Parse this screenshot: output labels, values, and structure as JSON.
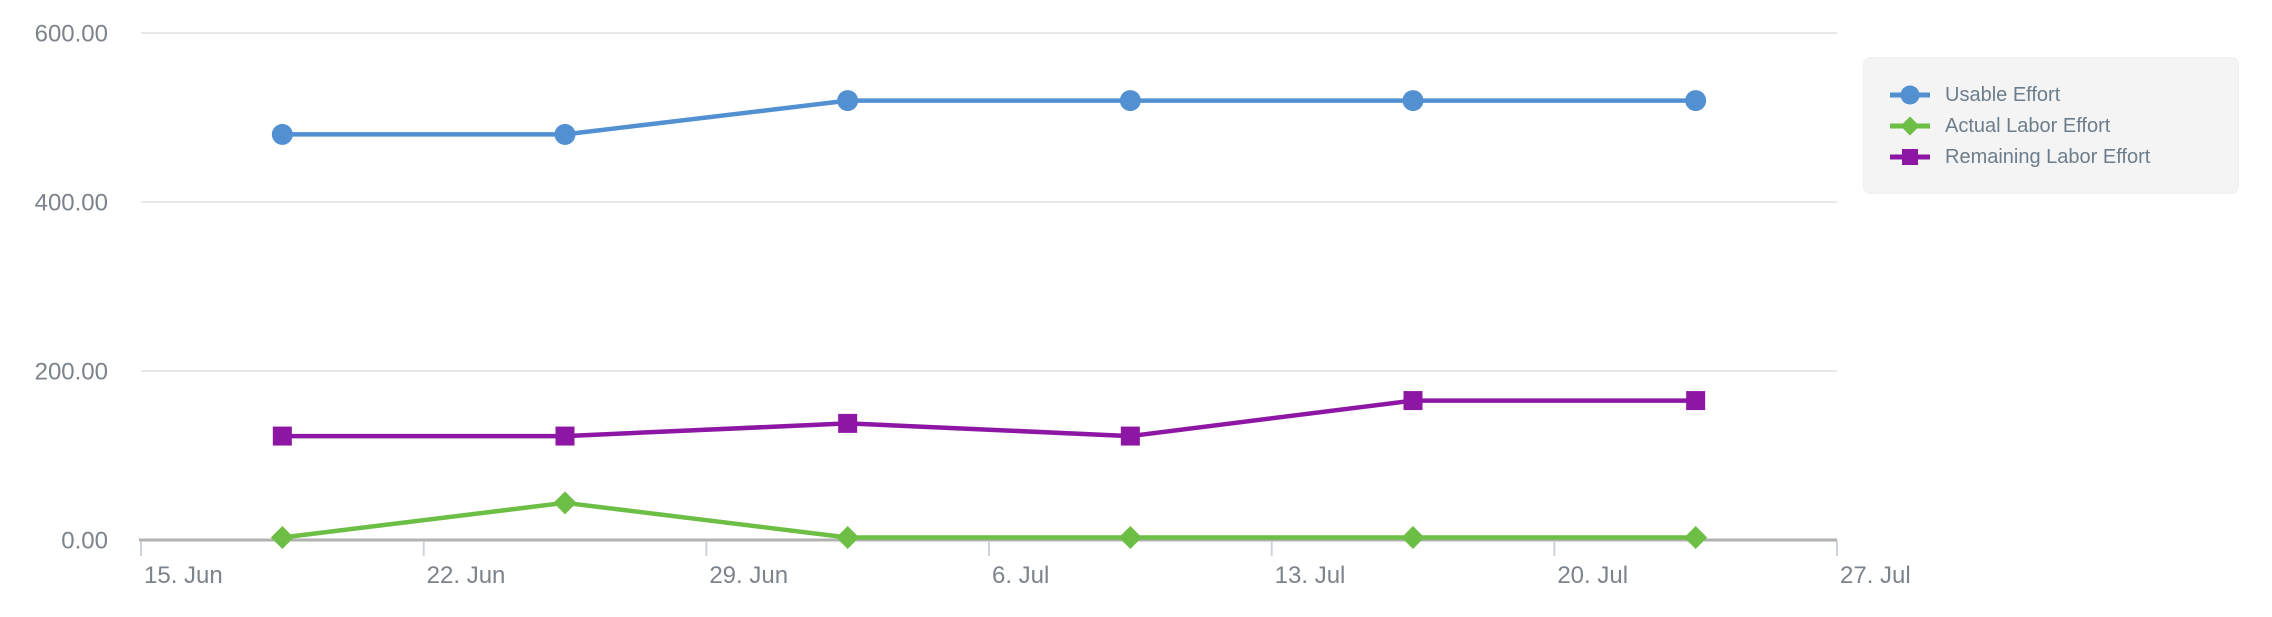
{
  "chart_data": {
    "type": "line",
    "title": "",
    "xlabel": "",
    "ylabel": "",
    "x": [
      "18. Jun",
      "25. Jun",
      "2. Jul",
      "9. Jul",
      "16. Jul",
      "23. Jul"
    ],
    "x_days": [
      3.5,
      10.5,
      17.5,
      24.5,
      31.5,
      38.5
    ],
    "x_axis_range_days": [
      0,
      42
    ],
    "x_tick_days": [
      0,
      7,
      14,
      21,
      28,
      35,
      42
    ],
    "x_tick_labels": [
      "15. Jun",
      "22. Jun",
      "29. Jun",
      "6. Jul",
      "13. Jul",
      "20. Jul",
      "27. Jul"
    ],
    "y_ticks": [
      0,
      200,
      400,
      600
    ],
    "y_tick_labels": [
      "0.00",
      "200.00",
      "400.00",
      "600.00"
    ],
    "ylim": [
      0,
      600
    ],
    "grid": true,
    "legend_position": "right-top",
    "series": [
      {
        "name": "Usable Effort",
        "color": "#5290d1",
        "marker": "circle",
        "values": [
          480,
          480,
          520,
          520,
          520,
          520
        ]
      },
      {
        "name": "Actual Labor Effort",
        "color": "#6cbe45",
        "marker": "diamond",
        "values": [
          3,
          44,
          3,
          3,
          3,
          3
        ]
      },
      {
        "name": "Remaining Labor Effort",
        "color": "#8d17a4",
        "marker": "square",
        "values": [
          123,
          123,
          138,
          123,
          165,
          165
        ]
      }
    ],
    "colors": {
      "grid_line": "#e8e8e8",
      "axis_line": "#b2b2b2",
      "tick_mark": "#cdd3dc",
      "axis_label_text": "#7c838c",
      "legend_text": "#6d7d8b",
      "legend_background": "#f4f4f4"
    }
  }
}
